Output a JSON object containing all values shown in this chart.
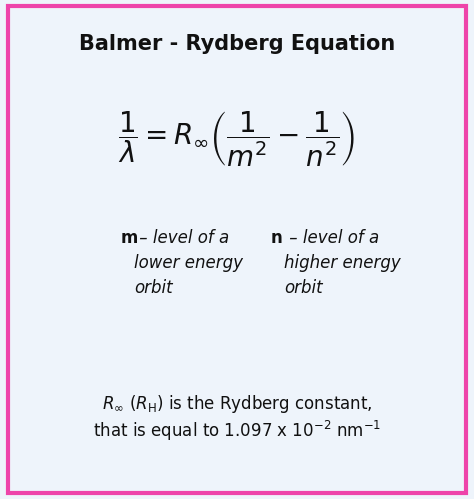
{
  "title": "Balmer - Rydberg Equation",
  "bg_color": "#eef4fb",
  "border_color": "#ee44aa",
  "title_fontsize": 15,
  "formula": "$\\dfrac{1}{\\lambda} = R_{\\infty}\\left(\\dfrac{1}{m^2} - \\dfrac{1}{n^2}\\right)$",
  "formula_fontsize": 20,
  "m_label_bold": "$\\mathbf{m}$",
  "m_label_rest": " – level of a\nlower energy\norbit",
  "n_label_bold": "$\\mathbf{n}$",
  "n_label_rest": " – level of a\nhigher energy\norbit",
  "desc_line1": "$R_{\\infty}$ ($R_{\\mathrm{H}}$) is the Rydberg constant,",
  "desc_line2": "that is equal to 1.097 x 10$^{-2}$ nm$^{-1}$",
  "label_fontsize": 12,
  "desc_fontsize": 12,
  "text_color": "#111111",
  "border_lw": 3.0
}
